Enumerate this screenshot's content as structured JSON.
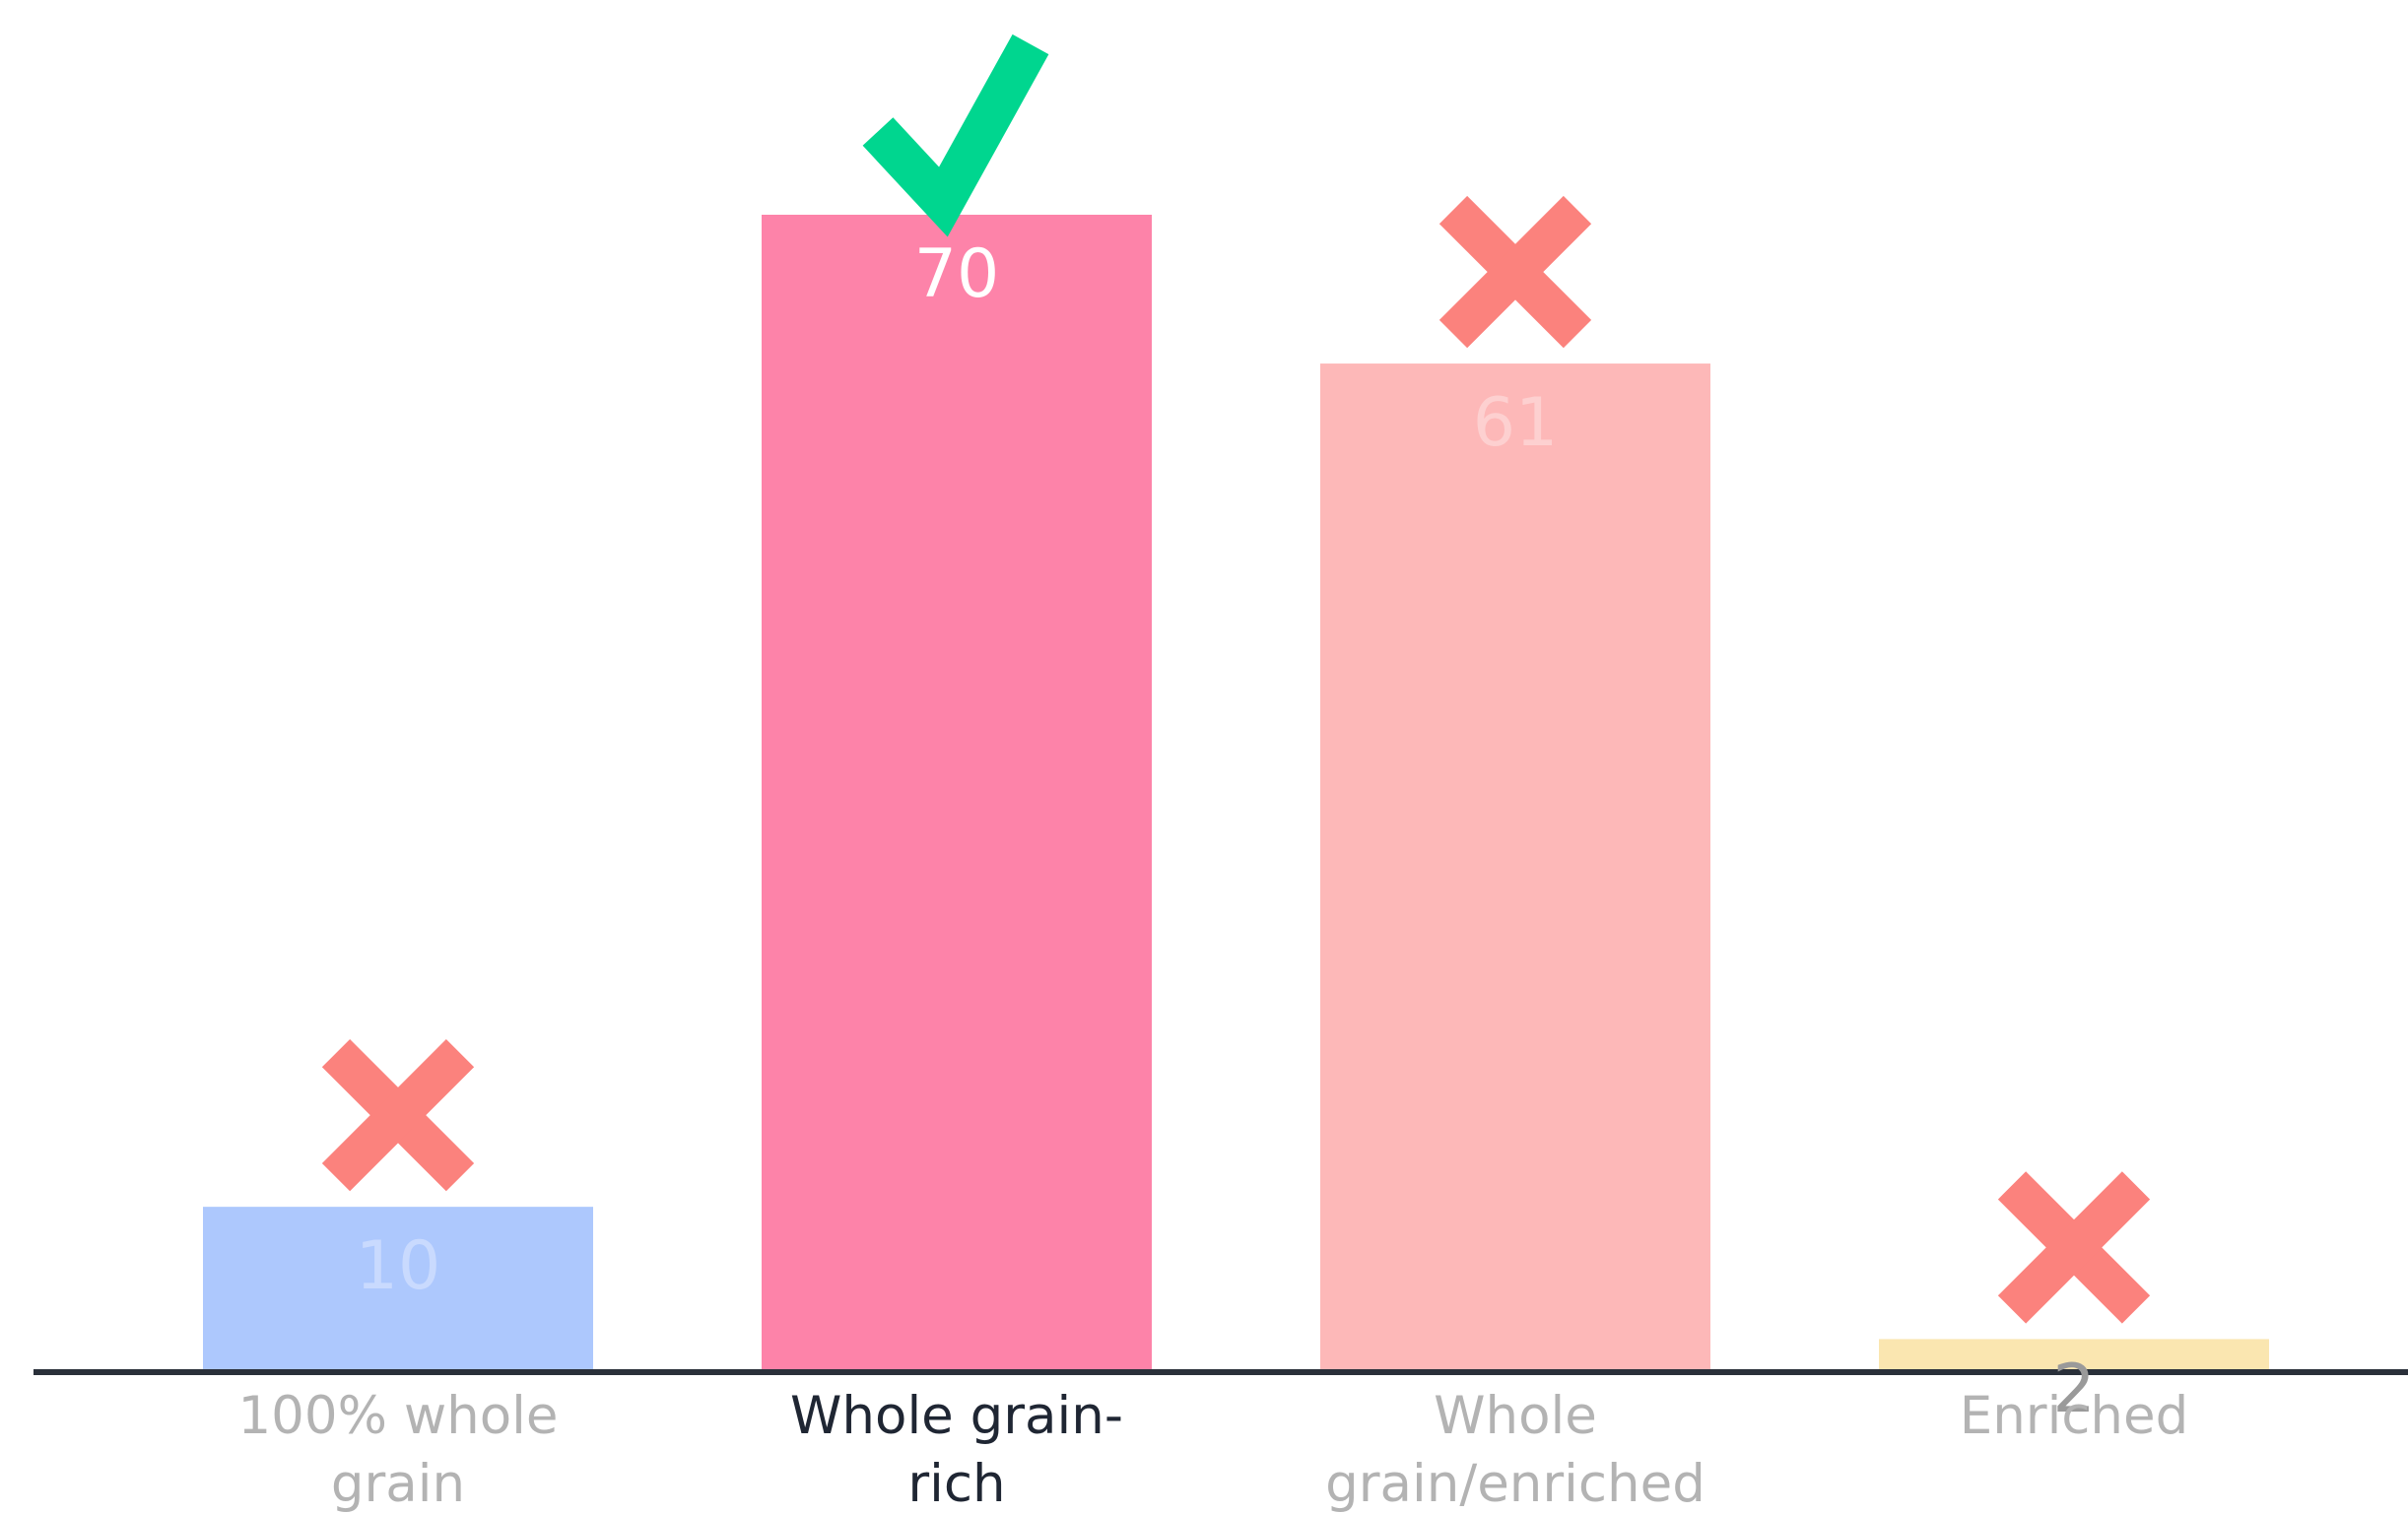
{
  "chart_data": {
    "type": "bar",
    "categories": [
      [
        "100% whole",
        "grain"
      ],
      [
        "Whole grain-",
        "rich"
      ],
      [
        "Whole",
        "grain/enriched"
      ],
      [
        "Enriched"
      ]
    ],
    "values": [
      10,
      70,
      61,
      2
    ],
    "value_labels": [
      "10",
      "70",
      "61",
      "2"
    ],
    "ylim": [
      0,
      70
    ],
    "grid": false,
    "legend": "none",
    "bar_colors": [
      "#adc8fd",
      "#fd83a9",
      "#fdb8b8",
      "#fae6b0"
    ],
    "value_label_colors": [
      "#c9dafe",
      "#ffffff",
      "#fdd0d0",
      "#9a9a9a"
    ],
    "category_label_colors": [
      "#b3b3b3",
      "#1f2633",
      "#b3b3b3",
      "#b3b3b3"
    ],
    "markers": [
      "cross-icon",
      "check-icon",
      "cross-icon",
      "cross-icon"
    ],
    "marker_colors": {
      "check-icon": "#00d68f",
      "cross-icon": "#fb827d"
    },
    "axis_color": "#2a303a"
  }
}
